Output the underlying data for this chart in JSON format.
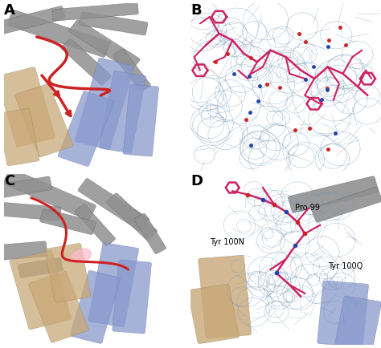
{
  "figure_width": 4.74,
  "figure_height": 4.34,
  "dpi": 100,
  "panels": [
    "A",
    "B",
    "C",
    "D"
  ],
  "panel_positions": {
    "A": [
      0.01,
      0.51,
      0.48,
      0.48
    ],
    "B": [
      0.5,
      0.51,
      0.5,
      0.48
    ],
    "C": [
      0.01,
      0.01,
      0.48,
      0.49
    ],
    "D": [
      0.5,
      0.01,
      0.5,
      0.49
    ]
  },
  "panel_label_fontsize": 13,
  "panel_label_color": "#000000",
  "bg_color": "#ffffff",
  "gray_color": "#909090",
  "gray_edge": "#606060",
  "blue_color": "#8899cc",
  "blue_edge": "#6677aa",
  "tan_color": "#c8a878",
  "tan_edge": "#a08050",
  "red_color": "#cc2222",
  "magenta_color": "#cc2266",
  "density_color": "#7799bb",
  "density_line": "#6688aa",
  "atom_red": "#cc2222",
  "atom_blue": "#2244aa",
  "pink_color": "#ffbbcc",
  "pink_edge": "#dd99aa"
}
